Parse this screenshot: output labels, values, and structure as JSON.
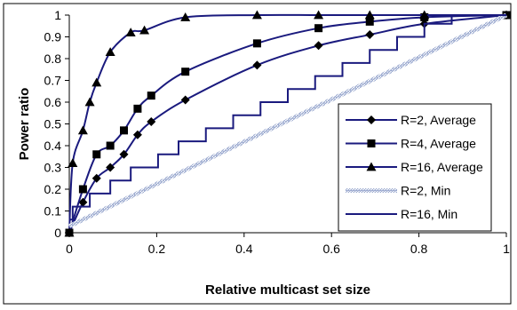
{
  "chart_data": {
    "type": "line",
    "title": "",
    "xlabel": "Relative multicast set size",
    "ylabel": "Power ratio",
    "xlim": [
      0,
      1
    ],
    "ylim": [
      0,
      1
    ],
    "x_ticks": [
      "0",
      "0.2",
      "0.4",
      "0.6",
      "0.8",
      "1"
    ],
    "y_ticks": [
      "0",
      "0.1",
      "0.2",
      "0.3",
      "0.4",
      "0.5",
      "0.6",
      "0.7",
      "0.8",
      "0.9",
      "1"
    ],
    "grid": false,
    "legend_position": "right",
    "line_color": "#1a1a7e",
    "min_r2_color": "#9aa9cf",
    "series": [
      {
        "name": "R=2, Average",
        "marker": "diamond",
        "x": [
          0,
          0.0313,
          0.0625,
          0.0938,
          0.125,
          0.1563,
          0.1875,
          0.2656,
          0.4297,
          0.5703,
          0.6875,
          0.8125,
          1.0
        ],
        "y": [
          0,
          0.14,
          0.25,
          0.3,
          0.36,
          0.45,
          0.51,
          0.61,
          0.77,
          0.86,
          0.91,
          0.96,
          1.0
        ]
      },
      {
        "name": "R=4, Average",
        "marker": "square",
        "x": [
          0,
          0.0313,
          0.0625,
          0.0938,
          0.125,
          0.1563,
          0.1875,
          0.2656,
          0.4297,
          0.5703,
          0.6875,
          0.8125,
          1.0
        ],
        "y": [
          0,
          0.2,
          0.36,
          0.4,
          0.47,
          0.57,
          0.63,
          0.74,
          0.87,
          0.94,
          0.97,
          0.99,
          1.0
        ]
      },
      {
        "name": "R=16, Average",
        "marker": "triangle",
        "x": [
          0,
          0.0078,
          0.0313,
          0.0469,
          0.0625,
          0.0938,
          0.1406,
          0.1719,
          0.2656,
          0.4297,
          0.5703,
          0.6875,
          0.8125,
          1.0
        ],
        "y": [
          0,
          0.32,
          0.47,
          0.6,
          0.69,
          0.83,
          0.92,
          0.93,
          0.99,
          1.0,
          1.0,
          1.0,
          1.0,
          1.0
        ]
      },
      {
        "name": "R=2, Min",
        "marker": "none",
        "style": "hatched",
        "x": [
          0,
          1.0
        ],
        "y": [
          0.03,
          1.0
        ]
      },
      {
        "name": "R=16, Min",
        "marker": "none",
        "style": "step",
        "x": [
          0,
          0.0078,
          0.0469,
          0.0938,
          0.1406,
          0.2031,
          0.25,
          0.3125,
          0.375,
          0.4375,
          0.5,
          0.5625,
          0.625,
          0.6875,
          0.75,
          0.8125,
          0.875,
          0.9375
        ],
        "y": [
          0.06,
          0.12,
          0.18,
          0.24,
          0.3,
          0.36,
          0.42,
          0.48,
          0.54,
          0.6,
          0.66,
          0.72,
          0.78,
          0.84,
          0.9,
          0.96,
          1.0,
          1.0
        ]
      }
    ]
  }
}
